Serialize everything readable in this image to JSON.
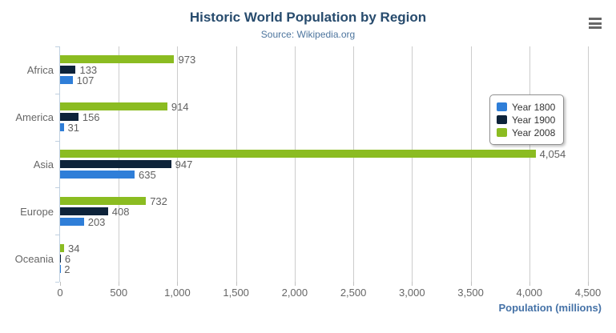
{
  "chart_data": {
    "type": "bar",
    "orientation": "horizontal",
    "title": "Historic World Population by Region",
    "subtitle": "Source: Wikipedia.org",
    "categories": [
      "Africa",
      "America",
      "Asia",
      "Europe",
      "Oceania"
    ],
    "series": [
      {
        "name": "Year 1800",
        "color": "#2f7ed8",
        "values": [
          107,
          31,
          635,
          203,
          2
        ]
      },
      {
        "name": "Year 1900",
        "color": "#0d233a",
        "values": [
          133,
          156,
          947,
          408,
          6
        ]
      },
      {
        "name": "Year 2008",
        "color": "#8bbc21",
        "values": [
          973,
          914,
          4054,
          732,
          34
        ]
      }
    ],
    "bar_draw_order_top_to_bottom": [
      "Year 2008",
      "Year 1900",
      "Year 1800"
    ],
    "data_labels_visible": true,
    "xlabel": "Population (millions)",
    "ylabel": "",
    "xlim": [
      0,
      4500
    ],
    "xticks": [
      0,
      500,
      1000,
      1500,
      2000,
      2500,
      3000,
      3500,
      4000,
      4500
    ],
    "grid": true,
    "legend_position": "right",
    "colors": {
      "title": "#274b6d",
      "subtitle": "#4d759e",
      "axis_title": "#4572a7",
      "axis_labels": "#666666",
      "data_labels": "#606060",
      "gridline": "#cccccc",
      "category_axis_line": "#c0d0e0",
      "menu_icon": "#666666"
    }
  },
  "icons": {
    "context_menu": "hamburger-menu-icon"
  }
}
